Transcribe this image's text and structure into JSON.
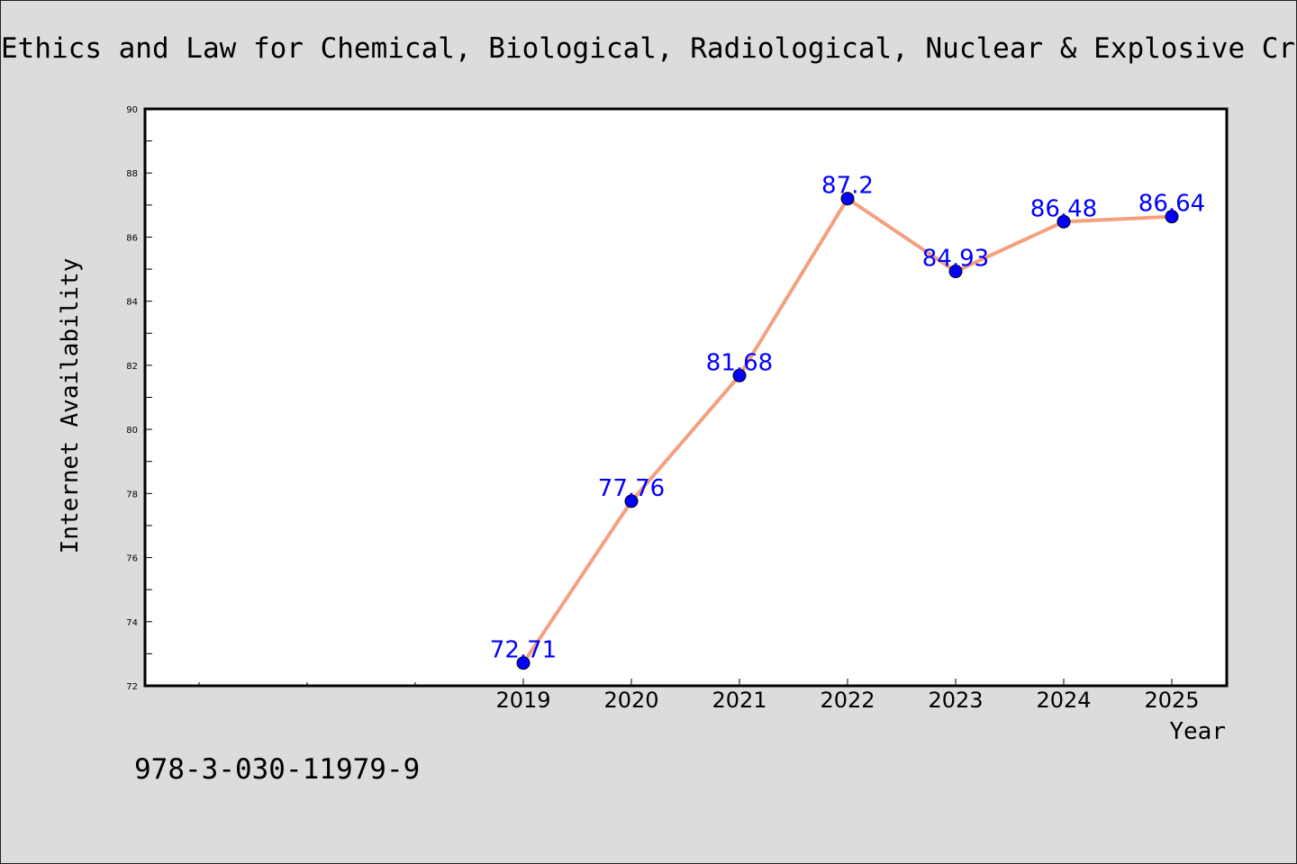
{
  "chart_data": {
    "type": "line",
    "title": "Ethics and Law for Chemical, Biological, Radiological, Nuclear & Explosive Crise",
    "xlabel": "Year",
    "ylabel": "Internet Availability",
    "x": [
      "2019",
      "2020",
      "2021",
      "2022",
      "2023",
      "2024",
      "2025"
    ],
    "series": [
      {
        "values": [
          72.71,
          77.76,
          81.68,
          87.2,
          84.93,
          86.48,
          86.64
        ],
        "labels": [
          "72.71",
          "77.76",
          "81.68",
          "87.2",
          "84.93",
          "86.48",
          "86.64"
        ]
      }
    ],
    "ylim": [
      72,
      90
    ],
    "yticks": [
      "72",
      "74",
      "76",
      "78",
      "80",
      "82",
      "84",
      "86",
      "88",
      "90"
    ],
    "grid": false,
    "legend": "none",
    "colors": {
      "line": "#f4a07e",
      "marker": "#0000ff",
      "label": "#0000ff",
      "plot_background": "#ffffff",
      "page_background": "#dcdcdc"
    }
  },
  "footnote": "978-3-030-11979-9"
}
